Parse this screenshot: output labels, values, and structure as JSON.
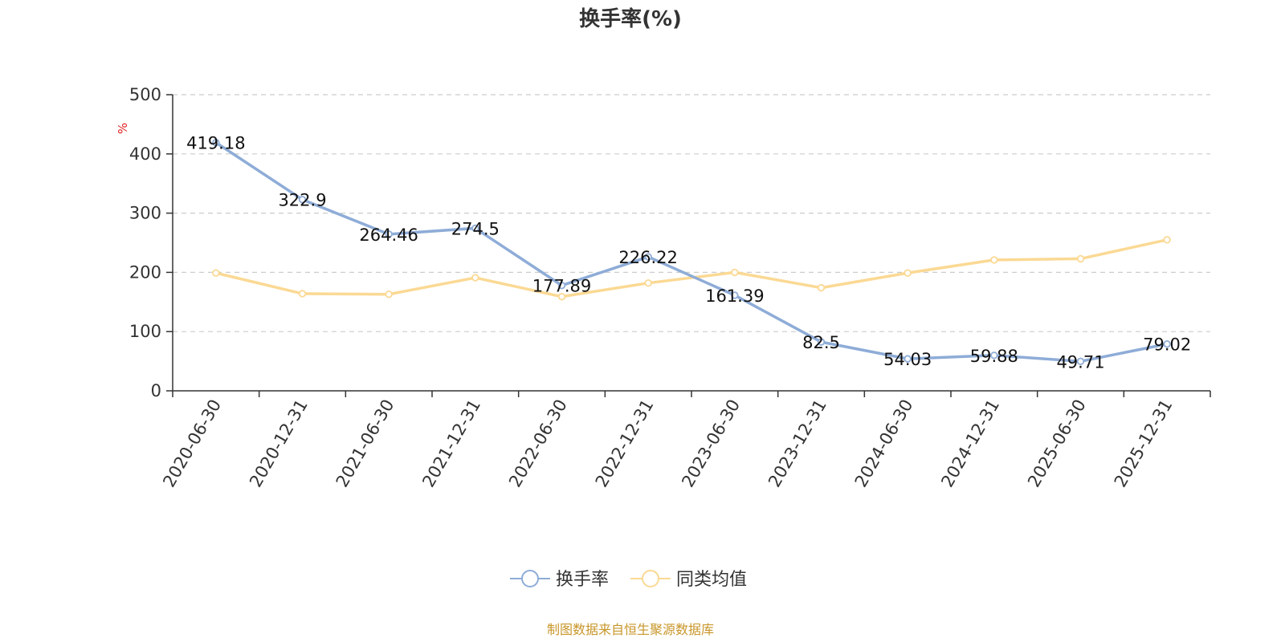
{
  "chart_data": {
    "type": "line",
    "title": "换手率(%)",
    "ylabel": "%",
    "ylim": [
      0,
      500
    ],
    "yticks": [
      0,
      100,
      200,
      300,
      400,
      500
    ],
    "grid": true,
    "categories": [
      "2020-06-30",
      "2020-12-31",
      "2021-06-30",
      "2021-12-31",
      "2022-06-30",
      "2022-12-31",
      "2023-06-30",
      "2023-12-31",
      "2024-06-30",
      "2024-12-31",
      "2025-06-30",
      "2025-12-31"
    ],
    "series": [
      {
        "name": "换手率",
        "color": "#8eacd7",
        "values": [
          419.18,
          322.9,
          264.46,
          274.5,
          177.89,
          226.22,
          161.39,
          82.5,
          54.03,
          59.88,
          49.71,
          79.02
        ],
        "labels": [
          "419.18",
          "322.9",
          "264.46",
          "274.5",
          "177.89",
          "226.22",
          "161.39",
          "82.5",
          "54.03",
          "59.88",
          "49.71",
          "79.02"
        ]
      },
      {
        "name": "同类均值",
        "color": "#fbd994",
        "values": [
          199,
          164,
          163,
          191,
          159,
          182,
          200,
          174,
          199,
          221,
          223,
          255
        ]
      }
    ],
    "legend_position": "bottom-center",
    "source": "制图数据来自恒生聚源数据库"
  },
  "colors": {
    "axis": "#333333",
    "grid": "#cccccc",
    "unit": "#e02020",
    "source": "#c8962a"
  }
}
